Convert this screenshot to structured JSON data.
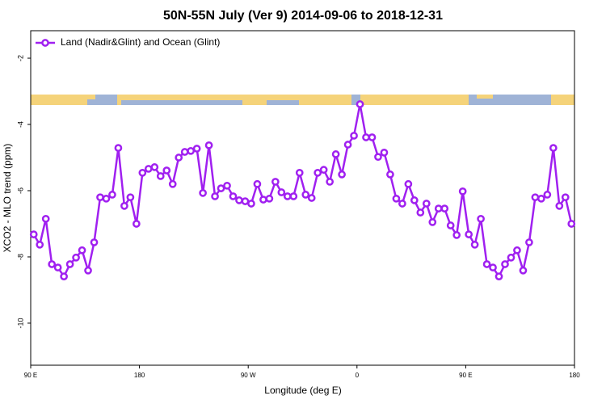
{
  "chart_data": {
    "type": "line",
    "title": "50N-55N July (Ver 9)   2014-09-06 to 2018-12-31",
    "xlabel": "Longitude (deg E)",
    "ylabel": "XCO2 - MLO trend (ppm)",
    "x": [
      92.5,
      97.5,
      102.5,
      107.5,
      112.5,
      117.5,
      122.5,
      127.5,
      132.5,
      137.5,
      142.5,
      147.5,
      152.5,
      157.5,
      162.5,
      167.5,
      172.5,
      177.5,
      182.5,
      187.5,
      192.5,
      197.5,
      202.5,
      207.5,
      212.5,
      217.5,
      222.5,
      227.5,
      232.5,
      237.5,
      242.5,
      247.5,
      252.5,
      257.5,
      262.5,
      267.5,
      272.5,
      277.5,
      282.5,
      287.5,
      292.5,
      297.5,
      302.5,
      307.5,
      312.5,
      317.5,
      322.5,
      327.5,
      332.5,
      337.5,
      342.5,
      347.5,
      352.5,
      357.5,
      362.5,
      367.5,
      372.5,
      377.5,
      382.5,
      387.5,
      392.5,
      397.5,
      402.5,
      407.5,
      412.5,
      417.5,
      422.5,
      427.5,
      432.5,
      437.5,
      442.5,
      447.5,
      452.5,
      457.5,
      462.5,
      467.5,
      472.5,
      477.5,
      482.5,
      487.5,
      492.5,
      497.5,
      502.5,
      507.5,
      512.5,
      517.5,
      522.5,
      527.5,
      532.5,
      537.5
    ],
    "series": [
      {
        "name": "Land (Nadir&Glint) and Ocean (Glint)",
        "color": "#a020f0",
        "values": [
          -7.32,
          -7.63,
          -6.85,
          -8.22,
          -8.32,
          -8.59,
          -8.22,
          -8.02,
          -7.8,
          -8.41,
          -7.56,
          -6.2,
          -6.24,
          -6.12,
          -4.71,
          -6.46,
          -6.2,
          -7.0,
          -5.46,
          -5.34,
          -5.29,
          -5.56,
          -5.39,
          -5.8,
          -5.0,
          -4.83,
          -4.8,
          -4.73,
          -6.07,
          -4.63,
          -6.17,
          -5.93,
          -5.85,
          -6.17,
          -6.29,
          -6.32,
          -6.39,
          -5.8,
          -6.27,
          -6.24,
          -5.73,
          -6.05,
          -6.17,
          -6.17,
          -5.46,
          -6.12,
          -6.22,
          -5.46,
          -5.37,
          -5.73,
          -4.9,
          -5.51,
          -4.61,
          -4.34,
          -3.39,
          -4.39,
          -4.39,
          -4.98,
          -4.85,
          -5.51,
          -6.24,
          -6.39,
          -5.8,
          -6.29,
          -6.66,
          -6.39,
          -6.95,
          -6.54,
          -6.54,
          -7.05,
          -7.34,
          -6.02,
          -7.32,
          -7.63,
          -6.85,
          -8.22,
          -8.32,
          -8.59,
          -8.22,
          -8.02,
          -7.8,
          -8.41,
          -7.56,
          -6.2,
          -6.24,
          -6.12,
          -4.71,
          -6.46,
          -6.2,
          -7.0
        ]
      }
    ],
    "xlim": [
      90,
      540
    ],
    "xticks": [
      {
        "value": 90,
        "label": "90 E"
      },
      180,
      {
        "value": 270,
        "label": "90 W"
      },
      {
        "value": 360,
        "label": "0"
      },
      {
        "value": 450,
        "label": "90 E"
      },
      180
    ],
    "ylim": [
      -11.27,
      -1.17
    ],
    "yticks": [
      -2,
      -4,
      -6,
      -8,
      -10
    ],
    "legend": "top-left"
  }
}
